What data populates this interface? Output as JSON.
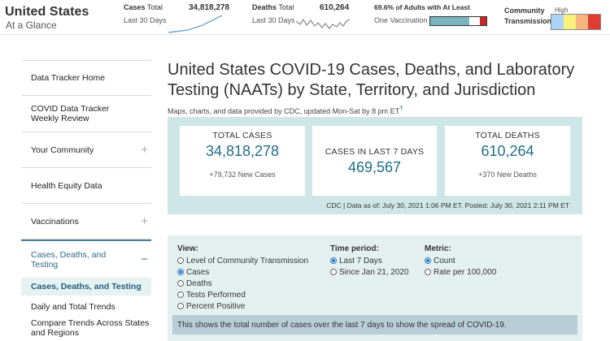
{
  "header": {
    "title": "United States",
    "subtitle": "At a Glance",
    "cases": {
      "label_bold": "Cases",
      "label": "Total",
      "value": "34,818,278",
      "sub": "Last 30 Days"
    },
    "deaths": {
      "label_bold": "Deaths",
      "label": "Total",
      "value": "610,264",
      "sub": "Last 30 Days"
    },
    "vaccination": {
      "label": "69.6% of Adults with At Least",
      "sub": "One Vaccination",
      "percent": 69.6
    },
    "community": {
      "line1": "Community",
      "line2": "Transmission",
      "high_label": "High",
      "swatch_colors": [
        "#aad3f5",
        "#f8f27c",
        "#f7b57d",
        "#e03c31"
      ]
    }
  },
  "sidebar": {
    "items": [
      {
        "label": "Data Tracker Home",
        "has_plus": false
      },
      {
        "label": "COVID Data Tracker Weekly Review",
        "has_plus": false
      },
      {
        "label": "Your Community",
        "has_plus": true
      },
      {
        "label": "Health Equity Data",
        "has_plus": false
      },
      {
        "label": "Vaccinations",
        "has_plus": true
      },
      {
        "label": "Cases, Deaths, and Testing",
        "expanded": true
      }
    ],
    "sub_items": [
      {
        "label": "Cases, Deaths, and Testing",
        "active": true
      },
      {
        "label": "Daily and Total Trends"
      },
      {
        "label": "Compare Trends Across States and Regions"
      }
    ]
  },
  "main": {
    "title": "United States COVID-19 Cases, Deaths, and Laboratory Testing (NAATs) by State, Territory, and Jurisdiction",
    "provided": "Maps, charts, and data provided by CDC, updated Mon-Sat by 8 pm ET",
    "provided_mark": "†",
    "stats": {
      "total_cases": {
        "label": "TOTAL CASES",
        "value": "34,818,278",
        "sub": "+79,732 New Cases"
      },
      "last7": {
        "label": "CASES IN LAST 7 DAYS",
        "value": "469,567"
      },
      "total_deaths": {
        "label": "TOTAL DEATHS",
        "value": "610,264",
        "sub": "+370 New Deaths"
      },
      "footer": "CDC | Data as of: July 30, 2021 1:06 PM ET. Posted: July 30, 2021 2:11 PM ET"
    },
    "filters": {
      "view": {
        "heading": "View:",
        "options": [
          "Level of Community Transmission",
          "Cases",
          "Deaths",
          "Tests Performed",
          "Percent Positive"
        ],
        "selected": "Cases"
      },
      "time": {
        "heading": "Time period:",
        "options": [
          "Last 7 Days",
          "Since Jan 21, 2020"
        ],
        "selected": "Last 7 Days"
      },
      "metric": {
        "heading": "Metric:",
        "options": [
          "Count",
          "Rate per 100,000"
        ],
        "selected": "Count"
      },
      "info": "This shows the total number of cases over the last 7 days to show the spread of COVID-19."
    }
  }
}
